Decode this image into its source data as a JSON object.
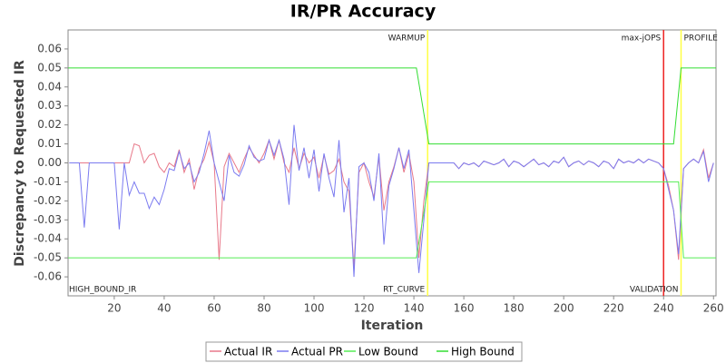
{
  "chart_data": {
    "type": "line",
    "title": "IR/PR Accuracy",
    "x_label": "Iteration",
    "y_label": "Discrepancy to Requested IR",
    "xlim": [
      1.5,
      261
    ],
    "ylim": [
      -0.07,
      0.07
    ],
    "xticks": [
      20,
      40,
      60,
      80,
      100,
      120,
      140,
      160,
      180,
      200,
      220,
      240,
      260
    ],
    "yticks": [
      -0.06,
      -0.05,
      -0.04,
      -0.03,
      -0.02,
      -0.01,
      {
        "value": 0,
        "label": "0.00"
      },
      0.01,
      0.02,
      0.03,
      0.04,
      0.05,
      0.06
    ],
    "grid": false,
    "legend": "bottom",
    "x": [
      2,
      4,
      6,
      8,
      10,
      12,
      14,
      16,
      18,
      20,
      22,
      24,
      26,
      28,
      30,
      32,
      34,
      36,
      38,
      40,
      42,
      44,
      46,
      48,
      50,
      52,
      54,
      56,
      58,
      60,
      62,
      64,
      66,
      68,
      70,
      72,
      74,
      76,
      78,
      80,
      82,
      84,
      86,
      88,
      90,
      92,
      94,
      96,
      98,
      100,
      102,
      104,
      106,
      108,
      110,
      112,
      114,
      116,
      118,
      120,
      122,
      124,
      126,
      128,
      130,
      132,
      134,
      136,
      138,
      140,
      142,
      144,
      146,
      148,
      150,
      152,
      154,
      156,
      158,
      160,
      162,
      164,
      166,
      168,
      170,
      172,
      174,
      176,
      178,
      180,
      182,
      184,
      186,
      188,
      190,
      192,
      194,
      196,
      198,
      200,
      202,
      204,
      206,
      208,
      210,
      212,
      214,
      216,
      218,
      220,
      222,
      224,
      226,
      228,
      230,
      232,
      234,
      236,
      238,
      240,
      242,
      244,
      246,
      248,
      250,
      252,
      254,
      256,
      258,
      260
    ],
    "series": [
      {
        "name": "Actual IR",
        "color": "#e8798a",
        "values": [
          0,
          0,
          0,
          0,
          0,
          0,
          0,
          0,
          0,
          0,
          0,
          0,
          0,
          0.01,
          0.009,
          0,
          0.004,
          0.005,
          -0.002,
          -0.005,
          0,
          -0.002,
          0.007,
          -0.005,
          0.002,
          -0.014,
          -0.003,
          0.002,
          0.011,
          0,
          -0.051,
          -0.002,
          0.005,
          0,
          -0.005,
          0.002,
          0.008,
          0.004,
          0,
          0.005,
          0.012,
          0.002,
          0.012,
          0,
          -0.005,
          0.008,
          -0.003,
          0.005,
          0,
          0.003,
          -0.008,
          0.004,
          -0.006,
          -0.004,
          0.002,
          -0.01,
          -0.015,
          -0.055,
          -0.005,
          0,
          -0.01,
          -0.018,
          0.003,
          -0.025,
          -0.01,
          -0.002,
          0.008,
          -0.005,
          0.005,
          -0.01,
          -0.05,
          -0.02,
          0,
          0,
          0,
          0,
          0,
          0,
          -0.003,
          0,
          -0.001,
          0,
          -0.002,
          0.001,
          0,
          -0.001,
          0,
          0.002,
          -0.002,
          0.001,
          0,
          -0.002,
          0,
          0.002,
          -0.001,
          0,
          -0.002,
          0.001,
          0,
          0.003,
          -0.002,
          0,
          0.001,
          -0.001,
          0.001,
          0,
          -0.002,
          0.001,
          0,
          -0.003,
          0.002,
          0,
          0.001,
          0,
          0.002,
          0,
          0.002,
          0.001,
          0,
          -0.003,
          -0.012,
          -0.025,
          -0.051,
          -0.003,
          0,
          0.002,
          0,
          0.007,
          -0.008,
          0
        ]
      },
      {
        "name": "Actual PR",
        "color": "#7b7bf0",
        "values": [
          0,
          0,
          0,
          -0.034,
          0,
          0,
          0,
          0,
          0,
          0,
          -0.035,
          0,
          -0.017,
          -0.01,
          -0.016,
          -0.016,
          -0.024,
          -0.018,
          -0.022,
          -0.014,
          -0.003,
          -0.004,
          0.006,
          -0.003,
          0,
          -0.01,
          -0.005,
          0.005,
          0.017,
          0,
          -0.01,
          -0.02,
          0.004,
          -0.005,
          -0.007,
          -0.001,
          0.009,
          0.003,
          0.001,
          0.002,
          0.012,
          0.004,
          0.012,
          0.002,
          -0.022,
          0.02,
          -0.004,
          0.008,
          -0.008,
          0.007,
          -0.015,
          0.005,
          -0.008,
          -0.018,
          0.012,
          -0.026,
          -0.008,
          -0.06,
          -0.002,
          0,
          -0.005,
          -0.02,
          0.005,
          -0.043,
          -0.012,
          -0.003,
          0.008,
          -0.003,
          0.007,
          -0.025,
          -0.058,
          -0.03,
          0,
          0,
          0,
          0,
          0,
          0,
          -0.003,
          0,
          -0.001,
          0,
          -0.002,
          0.001,
          0,
          -0.001,
          0,
          0.002,
          -0.002,
          0.001,
          0,
          -0.002,
          0,
          0.002,
          -0.001,
          0,
          -0.002,
          0.001,
          0,
          0.003,
          -0.002,
          0,
          0.001,
          -0.001,
          0.001,
          0,
          -0.002,
          0.001,
          0,
          -0.003,
          0.002,
          0,
          0.001,
          0,
          0.002,
          0,
          0.002,
          0.001,
          0,
          -0.003,
          -0.014,
          -0.025,
          -0.048,
          -0.003,
          0,
          0.002,
          0,
          0.006,
          -0.01,
          0
        ]
      },
      {
        "name": "Low Bound",
        "color": "#55ee55",
        "x": [
          1.5,
          141,
          146,
          246,
          248,
          261
        ],
        "values": [
          -0.05,
          -0.05,
          -0.01,
          -0.01,
          -0.05,
          -0.05
        ]
      },
      {
        "name": "High Bound",
        "color": "#33dd33",
        "x": [
          1.5,
          141,
          146,
          244,
          247,
          261
        ],
        "values": [
          0.05,
          0.05,
          0.01,
          0.01,
          0.05,
          0.05
        ]
      }
    ],
    "markers": [
      {
        "x": 145.5,
        "color": "#ffff44",
        "label": "WARMUP"
      },
      {
        "x": 240,
        "color": "#ee2222",
        "label": "max-jOPS"
      },
      {
        "x": 247,
        "color": "#ffff44",
        "label": "PROFILE"
      }
    ],
    "phase_labels": [
      {
        "x": 1.5,
        "label": "HIGH_BOUND_IR"
      },
      {
        "x": 145.5,
        "label": "RT_CURVE"
      },
      {
        "x": 247,
        "label": "VALIDATION"
      }
    ]
  }
}
